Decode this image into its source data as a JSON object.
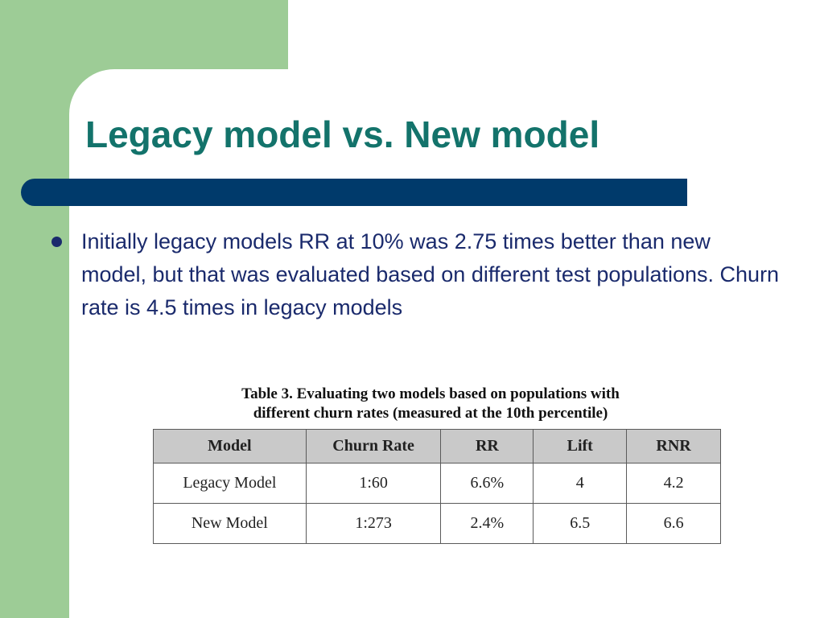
{
  "slide": {
    "title": "Legacy model vs. New model",
    "bullet": "Initially legacy models RR at 10% was 2.75 times better than new model, but that was evaluated based on different test populations. Churn rate is 4.5 times in legacy models"
  },
  "table": {
    "caption_line1": "Table 3. Evaluating two models based on populations with",
    "caption_line2": "different churn rates (measured at the 10th percentile)",
    "headers": [
      "Model",
      "Churn Rate",
      "RR",
      "Lift",
      "RNR"
    ],
    "rows": [
      [
        "Legacy Model",
        "1:60",
        "6.6%",
        "4",
        "4.2"
      ],
      [
        "New Model",
        "1:273",
        "2.4%",
        "6.5",
        "6.6"
      ]
    ]
  },
  "colors": {
    "accent_green": "#9dcc96",
    "title_teal": "#13736b",
    "bar_navy": "#003a6b",
    "text_navy": "#1a2a6c"
  }
}
